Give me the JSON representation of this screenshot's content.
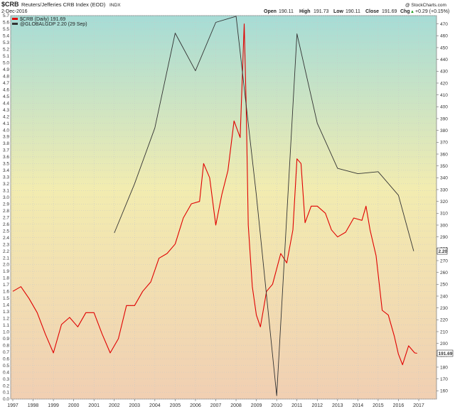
{
  "header": {
    "symbol": "$CRB",
    "name": "Reuters/Jefferies CRB Index (EOD)",
    "exchange": "INDX",
    "date": "2-Dec-2016",
    "watermark": "@ StockCharts.com",
    "open_label": "Open",
    "open": "190.11",
    "high_label": "High",
    "high": "191.73",
    "low_label": "Low",
    "low": "190.11",
    "close_label": "Close",
    "close": "191.69",
    "chg_label": "Chg",
    "chg": "+0.29 (+0.15%)",
    "arrow": "▲"
  },
  "legend": [
    {
      "label": "$CRB (Daily) 191.69",
      "color": "#e00000"
    },
    {
      "label": "@GLOBALGDP 2.20 (29 Sep)",
      "color": "#333333"
    }
  ],
  "colors": {
    "crb": "#e00000",
    "gdp": "#333333",
    "bg_top": "#a6dcd6",
    "bg_mid": "#f2ecb0",
    "bg_bot": "#f1cfb2",
    "grid": "#c8c8c8"
  },
  "chart_data": {
    "type": "line",
    "x_ticks": [
      "1997",
      "1998",
      "1999",
      "2000",
      "2001",
      "2002",
      "2003",
      "2004",
      "2005",
      "2006",
      "2007",
      "2008",
      "2009",
      "2010",
      "2011",
      "2012",
      "2013",
      "2014",
      "2015",
      "2016",
      "2017"
    ],
    "left_axis": {
      "ylim": [
        0,
        5.7
      ],
      "ticks": [
        "0.0",
        "0.1",
        "0.2",
        "0.3",
        "0.4",
        "0.5",
        "0.6",
        "0.7",
        "0.8",
        "0.9",
        "1.0",
        "1.1",
        "1.2",
        "1.3",
        "1.4",
        "1.5",
        "1.6",
        "1.7",
        "1.8",
        "1.9",
        "2.0",
        "2.1",
        "2.2",
        "2.3",
        "2.4",
        "2.5",
        "2.6",
        "2.7",
        "2.8",
        "2.9",
        "3.0",
        "3.1",
        "3.2",
        "3.3",
        "3.4",
        "3.5",
        "3.6",
        "3.7",
        "3.8",
        "3.9",
        "4.0",
        "4.1",
        "4.2",
        "4.3",
        "4.4",
        "4.5",
        "4.6",
        "4.7",
        "4.8",
        "4.9",
        "5.0",
        "5.1",
        "5.2",
        "5.3",
        "5.4",
        "5.5",
        "5.6",
        "5.7"
      ]
    },
    "right_axis": {
      "ylim": [
        153,
        477
      ],
      "ticks": [
        "160",
        "170",
        "180",
        "190",
        "200",
        "210",
        "220",
        "230",
        "240",
        "250",
        "260",
        "270",
        "280",
        "290",
        "300",
        "310",
        "320",
        "330",
        "340",
        "350",
        "360",
        "370",
        "380",
        "390",
        "400",
        "410",
        "420",
        "430",
        "440",
        "450",
        "460",
        "470"
      ]
    },
    "last_value_tags": {
      "left": "2.20",
      "right": "191.69"
    },
    "series": [
      {
        "name": "$CRB (Daily) 191.69",
        "axis": "right",
        "x": [
          1997.0,
          1997.4,
          1997.8,
          1998.2,
          1998.6,
          1999.0,
          1999.4,
          1999.8,
          2000.2,
          2000.6,
          2001.0,
          2001.4,
          2001.8,
          2002.2,
          2002.6,
          2003.0,
          2003.4,
          2003.8,
          2004.2,
          2004.6,
          2005.0,
          2005.4,
          2005.8,
          2006.2,
          2006.4,
          2006.7,
          2007.0,
          2007.3,
          2007.6,
          2007.9,
          2008.2,
          2008.4,
          2008.5,
          2008.6,
          2008.8,
          2009.0,
          2009.2,
          2009.5,
          2009.8,
          2010.2,
          2010.5,
          2010.8,
          2011.0,
          2011.2,
          2011.4,
          2011.7,
          2012.0,
          2012.4,
          2012.7,
          2013.0,
          2013.4,
          2013.8,
          2014.2,
          2014.4,
          2014.6,
          2014.9,
          2015.2,
          2015.5,
          2015.8,
          2016.0,
          2016.2,
          2016.5,
          2016.8,
          2016.92
        ],
        "y": [
          244,
          248,
          238,
          226,
          208,
          192,
          216,
          222,
          214,
          226,
          226,
          208,
          192,
          204,
          232,
          232,
          244,
          252,
          272,
          276,
          284,
          306,
          318,
          320,
          352,
          340,
          300,
          326,
          346,
          388,
          374,
          470,
          400,
          300,
          248,
          224,
          214,
          244,
          250,
          276,
          268,
          296,
          356,
          352,
          302,
          316,
          316,
          310,
          296,
          290,
          294,
          306,
          304,
          316,
          296,
          274,
          228,
          224,
          206,
          191,
          182,
          198,
          192,
          191.69
        ]
      },
      {
        "name": "@GLOBALGDP 2.20 (29 Sep)",
        "axis": "left",
        "x": [
          2002.0,
          2003.0,
          2004.0,
          2005.0,
          2006.0,
          2007.0,
          2008.0,
          2009.0,
          2010.0,
          2011.0,
          2012.0,
          2013.0,
          2014.0,
          2015.0,
          2016.0,
          2016.75
        ],
        "y": [
          2.47,
          3.2,
          4.03,
          5.44,
          4.88,
          5.6,
          5.69,
          3.03,
          0.05,
          5.43,
          4.1,
          3.43,
          3.35,
          3.38,
          3.03,
          2.2
        ]
      }
    ]
  }
}
